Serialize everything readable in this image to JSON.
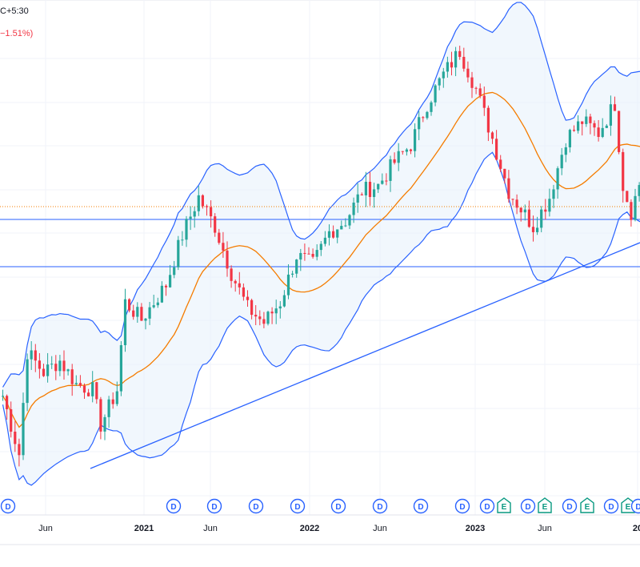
{
  "header": {
    "timezone_fragment": "C+5:30",
    "change_pct_fragment": "−1.51%)"
  },
  "colors": {
    "up": "#26a69a",
    "down": "#f23645",
    "bollinger_line": "#2962ff",
    "bollinger_fill": "#e8f1fb",
    "moving_average": "#f57c00",
    "trendline": "#2962ff",
    "level_line": "#2962ff",
    "dotted_level": "#f57c00",
    "dividend_event": "#2962ff",
    "earnings_event": "#089981"
  },
  "chart_data": {
    "type": "candlestick",
    "timeframe": "weekly",
    "y_axis": "not shown",
    "overlays": [
      "bollinger_bands",
      "moving_average",
      "trendline",
      "horizontal_levels"
    ],
    "x_ticks": [
      {
        "label": "Jun",
        "bold": false
      },
      {
        "label": "2021",
        "bold": true
      },
      {
        "label": "Jun",
        "bold": false
      },
      {
        "label": "2022",
        "bold": true
      },
      {
        "label": "Jun",
        "bold": false
      },
      {
        "label": "2023",
        "bold": true
      },
      {
        "label": "Jun",
        "bold": false
      },
      {
        "label": "20",
        "bold": true
      }
    ],
    "events": [
      "D",
      "D",
      "D",
      "D",
      "D",
      "D",
      "D",
      "D",
      "D",
      "D",
      "E",
      "D",
      "E",
      "D",
      "E",
      "D",
      "E",
      "D"
    ],
    "price_path": [
      {
        "t": 0,
        "v": 40
      },
      {
        "t": 4,
        "v": 20
      },
      {
        "t": 6,
        "v": 55
      },
      {
        "t": 10,
        "v": 48
      },
      {
        "t": 14,
        "v": 52
      },
      {
        "t": 18,
        "v": 44
      },
      {
        "t": 22,
        "v": 42
      },
      {
        "t": 24,
        "v": 30
      },
      {
        "t": 28,
        "v": 42
      },
      {
        "t": 30,
        "v": 72
      },
      {
        "t": 34,
        "v": 66
      },
      {
        "t": 40,
        "v": 78
      },
      {
        "t": 44,
        "v": 95
      },
      {
        "t": 48,
        "v": 108
      },
      {
        "t": 52,
        "v": 98
      },
      {
        "t": 56,
        "v": 82
      },
      {
        "t": 60,
        "v": 70
      },
      {
        "t": 64,
        "v": 65
      },
      {
        "t": 68,
        "v": 72
      },
      {
        "t": 72,
        "v": 88
      },
      {
        "t": 76,
        "v": 85
      },
      {
        "t": 80,
        "v": 96
      },
      {
        "t": 84,
        "v": 100
      },
      {
        "t": 88,
        "v": 110
      },
      {
        "t": 92,
        "v": 112
      },
      {
        "t": 96,
        "v": 120
      },
      {
        "t": 100,
        "v": 126
      },
      {
        "t": 104,
        "v": 140
      },
      {
        "t": 108,
        "v": 150
      },
      {
        "t": 112,
        "v": 158
      },
      {
        "t": 116,
        "v": 145
      },
      {
        "t": 120,
        "v": 128
      },
      {
        "t": 124,
        "v": 110
      },
      {
        "t": 128,
        "v": 102
      },
      {
        "t": 130,
        "v": 98
      },
      {
        "t": 134,
        "v": 108
      },
      {
        "t": 138,
        "v": 128
      },
      {
        "t": 142,
        "v": 134
      },
      {
        "t": 146,
        "v": 130
      },
      {
        "t": 150,
        "v": 140
      },
      {
        "t": 152,
        "v": 112
      },
      {
        "t": 154,
        "v": 103
      },
      {
        "t": 158,
        "v": 122
      }
    ]
  }
}
